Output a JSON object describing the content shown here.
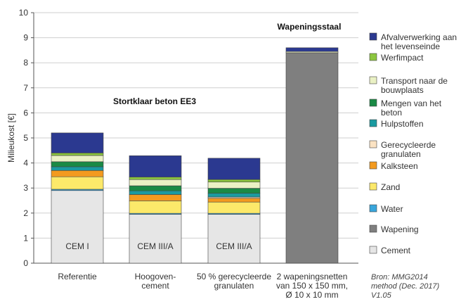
{
  "chart_data": {
    "type": "bar",
    "stacked": true,
    "ylabel": "Milieukost [€]",
    "ylim": [
      0,
      10
    ],
    "yticks": [
      "0",
      "1",
      "2",
      "3",
      "4",
      "5",
      "6",
      "7",
      "8",
      "9",
      "10"
    ],
    "categories": [
      [
        "Referentie"
      ],
      [
        "Hoogoven-",
        "cement"
      ],
      [
        "50 % gerecycleerde",
        "granulaten"
      ],
      [
        "2 wapeningsnetten",
        "van 150 x 150 mm,",
        "Ø 10 x 10 mm"
      ]
    ],
    "bar_labels": [
      "CEM I",
      "CEM III/A",
      "CEM III/A",
      ""
    ],
    "annotations": [
      "Stortklaar beton EE3",
      "Wapeningsstaal"
    ],
    "source_note": [
      "Bron: MMG2014",
      "method (Dec. 2017)",
      "V1.05"
    ],
    "grid": "horizontal",
    "legend_position": "right",
    "series": [
      {
        "name": "Cement",
        "color": "#e6e6e6",
        "values": [
          2.9,
          1.95,
          1.95,
          0
        ]
      },
      {
        "name": "Wapening",
        "color": "#7f7f7f",
        "values": [
          0,
          0,
          0,
          8.4
        ]
      },
      {
        "name": "Water",
        "color": "#39a6dc",
        "values": [
          0.05,
          0.04,
          0.04,
          0
        ]
      },
      {
        "name": "Zand",
        "color": "#fce96a",
        "values": [
          0.5,
          0.5,
          0.45,
          0
        ]
      },
      {
        "name": "Kalksteen",
        "color": "#f39a1f",
        "values": [
          0.25,
          0.25,
          0.15,
          0
        ]
      },
      {
        "name": "Gerecycleerde granulaten",
        "color": "#fbe3c3",
        "values": [
          0,
          0,
          0.05,
          0
        ]
      },
      {
        "name": "Hulpstoffen",
        "color": "#1a9aa0",
        "values": [
          0.15,
          0.15,
          0.15,
          0
        ]
      },
      {
        "name": "Mengen van het beton",
        "color": "#1a8a45",
        "values": [
          0.2,
          0.2,
          0.2,
          0
        ]
      },
      {
        "name": "Transport naar de bouwplaats",
        "color": "#eaf1c4",
        "values": [
          0.25,
          0.25,
          0.25,
          0.05
        ]
      },
      {
        "name": "Werfimpact",
        "color": "#8cc63f",
        "values": [
          0.1,
          0.1,
          0.1,
          0
        ]
      },
      {
        "name": "Afvalverwerking aan het levenseinde",
        "color": "#2b3990",
        "values": [
          0.8,
          0.85,
          0.85,
          0.15
        ]
      }
    ]
  },
  "legend": [
    {
      "lines": [
        "Afvalverwerking aan",
        "het levenseinde"
      ],
      "color": "#2b3990"
    },
    {
      "lines": [
        "Werfimpact"
      ],
      "color": "#8cc63f"
    },
    {
      "lines": [
        "Transport naar de",
        "bouwplaats"
      ],
      "color": "#eaf1c4"
    },
    {
      "lines": [
        "Mengen van het",
        "beton"
      ],
      "color": "#1a8a45"
    },
    {
      "lines": [
        "Hulpstoffen"
      ],
      "color": "#1a9aa0"
    },
    {
      "lines": [
        "Gerecycleerde",
        "granulaten"
      ],
      "color": "#fbe3c3"
    },
    {
      "lines": [
        "Kalksteen"
      ],
      "color": "#f39a1f"
    },
    {
      "lines": [
        "Zand"
      ],
      "color": "#fce96a"
    },
    {
      "lines": [
        "Water"
      ],
      "color": "#39a6dc"
    },
    {
      "lines": [
        "Wapening"
      ],
      "color": "#7f7f7f"
    },
    {
      "lines": [
        "Cement"
      ],
      "color": "#e6e6e6"
    }
  ]
}
